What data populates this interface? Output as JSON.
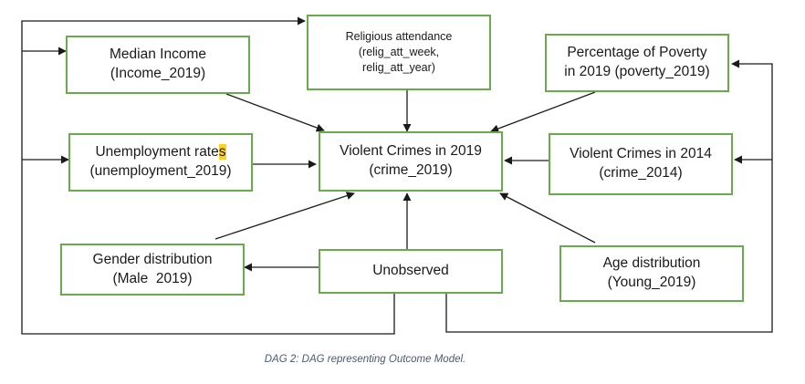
{
  "nodes": {
    "median_income": {
      "line1": "Median Income",
      "line2": "(Income_2019)"
    },
    "religious": {
      "line1": "Religious attendance",
      "line2": "(relig_att_week,",
      "line3": "relig_att_year)"
    },
    "poverty": {
      "line1": "Percentage of Poverty",
      "line2": "in 2019 (poverty_2019)"
    },
    "unemployment": {
      "line1_a": "Unemployment rate",
      "line1_b": "s",
      "line2": "(unemployment_2019)"
    },
    "violent_2019": {
      "line1": "Violent Crimes in 2019",
      "line2": "(crime_2019)"
    },
    "violent_2014": {
      "line1": "Violent Crimes in 2014",
      "line2": "(crime_2014)"
    },
    "gender": {
      "line1": "Gender distribution",
      "line2": "(Male  2019)"
    },
    "unobserved": {
      "line1": "Unobserved"
    },
    "age": {
      "line1": "Age distribution",
      "line2": "(Young_2019)"
    }
  },
  "edges": [
    {
      "from": "median_income",
      "to": "violent_2019"
    },
    {
      "from": "religious",
      "to": "violent_2019"
    },
    {
      "from": "poverty",
      "to": "violent_2019"
    },
    {
      "from": "unemployment",
      "to": "violent_2019"
    },
    {
      "from": "violent_2014",
      "to": "violent_2019"
    },
    {
      "from": "unobserved",
      "to": "violent_2019"
    },
    {
      "from": "gender",
      "to": "violent_2019"
    },
    {
      "from": "age",
      "to": "violent_2019"
    },
    {
      "from": "unobserved",
      "to": "gender"
    },
    {
      "from": "unobserved",
      "to": "religious"
    },
    {
      "from": "unobserved",
      "to": "median_income"
    },
    {
      "from": "unobserved",
      "to": "unemployment"
    },
    {
      "from": "unobserved",
      "to": "poverty"
    },
    {
      "from": "unobserved",
      "to": "violent_2014"
    }
  ],
  "caption": "DAG 2: DAG representing Outcome Model.",
  "colors": {
    "node_border": "#6aaa4e",
    "arrow": "#1a1a1a",
    "caption": "#4a5a70",
    "highlight": "#ffd21f"
  }
}
